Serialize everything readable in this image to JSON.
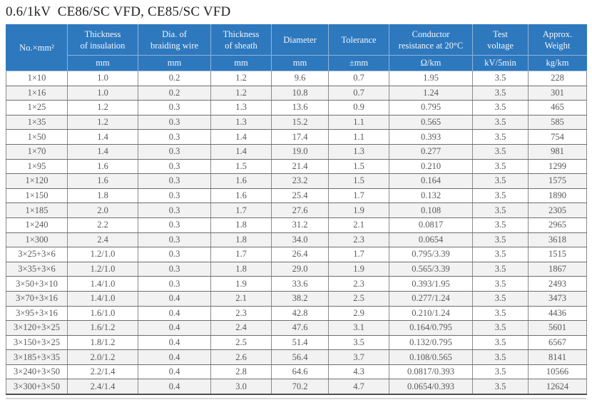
{
  "title": "0.6/1kV  CE86/SC VFD, CE85/SC VFD",
  "colors": {
    "header_bg": "#2e78be",
    "header_text": "#f2f7fd",
    "row_alt": "#f2f2f2",
    "cell_text": "#595959"
  },
  "table": {
    "columns": [
      {
        "label": "No.×mm²",
        "unit": null
      },
      {
        "label": "Thickness\nof insulation",
        "unit": "mm"
      },
      {
        "label": "Dia. of\nbraiding wire",
        "unit": "mm"
      },
      {
        "label": "Thickness\nof sheath",
        "unit": "mm"
      },
      {
        "label": "Diameter",
        "unit": "mm"
      },
      {
        "label": "Tolerance",
        "unit": "±mm"
      },
      {
        "label": "Conductor\nresistance at 20°C",
        "unit": "Ω/km"
      },
      {
        "label": "Test\nvoltage",
        "unit": "kV/5min"
      },
      {
        "label": "Approx.\nWeight",
        "unit": "kg/km"
      }
    ],
    "rows": [
      [
        "1×10",
        "1.0",
        "0.2",
        "1.2",
        "9.6",
        "0.7",
        "1.95",
        "3.5",
        "228"
      ],
      [
        "1×16",
        "1.0",
        "0.2",
        "1.2",
        "10.8",
        "0.7",
        "1.24",
        "3.5",
        "301"
      ],
      [
        "1×25",
        "1.2",
        "0.3",
        "1.3",
        "13.6",
        "0.9",
        "0.795",
        "3.5",
        "465"
      ],
      [
        "1×35",
        "1.2",
        "0.3",
        "1.3",
        "15.2",
        "1.1",
        "0.565",
        "3.5",
        "585"
      ],
      [
        "1×50",
        "1.4",
        "0.3",
        "1.4",
        "17.4",
        "1.1",
        "0.393",
        "3.5",
        "754"
      ],
      [
        "1×70",
        "1.4",
        "0.3",
        "1.4",
        "19.0",
        "1.3",
        "0.277",
        "3.5",
        "981"
      ],
      [
        "1×95",
        "1.6",
        "0.3",
        "1.5",
        "21.4",
        "1.5",
        "0.210",
        "3.5",
        "1299"
      ],
      [
        "1×120",
        "1.6",
        "0.3",
        "1.6",
        "23.2",
        "1.5",
        "0.164",
        "3.5",
        "1575"
      ],
      [
        "1×150",
        "1.8",
        "0.3",
        "1.6",
        "25.4",
        "1.7",
        "0.132",
        "3.5",
        "1890"
      ],
      [
        "1×185",
        "2.0",
        "0.3",
        "1.7",
        "27.6",
        "1.9",
        "0.108",
        "3.5",
        "2305"
      ],
      [
        "1×240",
        "2.2",
        "0.3",
        "1.8",
        "31.2",
        "2.1",
        "0.0817",
        "3.5",
        "2965"
      ],
      [
        "1×300",
        "2.4",
        "0.3",
        "1.8",
        "34.0",
        "2.3",
        "0.0654",
        "3.5",
        "3618"
      ],
      [
        "3×25+3×6",
        "1.2/1.0",
        "0.3",
        "1.7",
        "26.4",
        "1.7",
        "0.795/3.39",
        "3.5",
        "1515"
      ],
      [
        "3×35+3×6",
        "1.2/1.0",
        "0.3",
        "1.8",
        "29.0",
        "1.9",
        "0.565/3.39",
        "3.5",
        "1867"
      ],
      [
        "3×50+3×10",
        "1.4/1.0",
        "0.3",
        "1.9",
        "33.6",
        "2.3",
        "0.393/1.95",
        "3.5",
        "2493"
      ],
      [
        "3×70+3×16",
        "1.4/1.0",
        "0.4",
        "2.1",
        "38.2",
        "2.5",
        "0.277/1.24",
        "3.5",
        "3473"
      ],
      [
        "3×95+3×16",
        "1.6/1.0",
        "0.4",
        "2.3",
        "42.8",
        "2.9",
        "0.210/1.24",
        "3.5",
        "4436"
      ],
      [
        "3×120+3×25",
        "1.6/1.2",
        "0.4",
        "2.4",
        "47.6",
        "3.1",
        "0.164/0.795",
        "3.5",
        "5601"
      ],
      [
        "3×150+3×25",
        "1.8/1.2",
        "0.4",
        "2.5",
        "51.4",
        "3.5",
        "0.132/0.795",
        "3.5",
        "6567"
      ],
      [
        "3×185+3×35",
        "2.0/1.2",
        "0.4",
        "2.6",
        "56.4",
        "3.7",
        "0.108/0.565",
        "3.5",
        "8141"
      ],
      [
        "3×240+3×50",
        "2.2/1.4",
        "0.4",
        "2.8",
        "64.6",
        "4.3",
        "0.0817/0.393",
        "3.5",
        "10566"
      ],
      [
        "3×300+3×50",
        "2.4/1.4",
        "0.4",
        "3.0",
        "70.2",
        "4.7",
        "0.0654/0.393",
        "3.5",
        "12624"
      ]
    ]
  }
}
